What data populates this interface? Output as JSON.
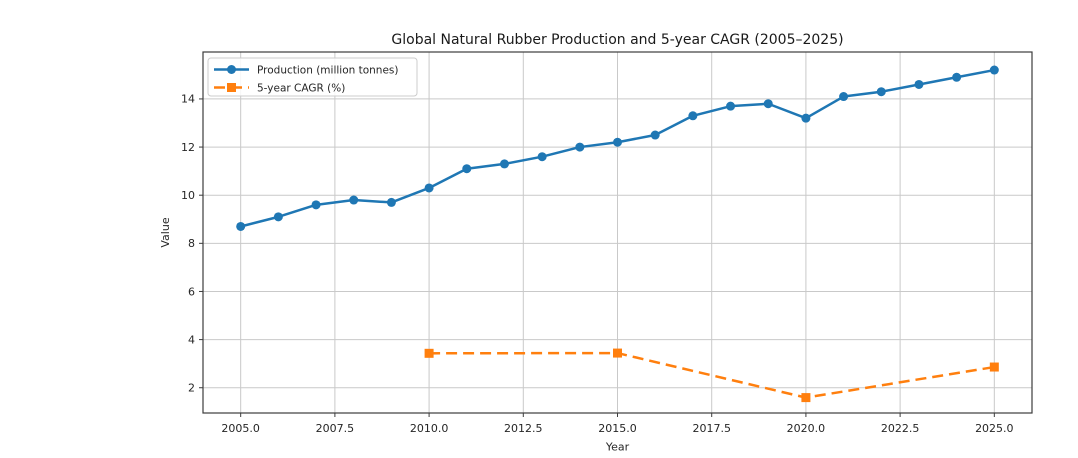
{
  "chart_data": {
    "type": "line",
    "title": "Global Natural Rubber Production and 5-year CAGR (2005–2025)",
    "xlabel": "Year",
    "ylabel": "Value",
    "xlim": [
      2004,
      2026
    ],
    "ylim": [
      0.95,
      15.95
    ],
    "grid": true,
    "legend_position": "upper left",
    "x_ticks": [
      2005,
      2007.5,
      2010,
      2012.5,
      2015,
      2017.5,
      2020,
      2022.5,
      2025
    ],
    "x_tick_labels": [
      "2005.0",
      "2007.5",
      "2010.0",
      "2012.5",
      "2015.0",
      "2017.5",
      "2020.0",
      "2022.5",
      "2025.0"
    ],
    "y_ticks": [
      2,
      4,
      6,
      8,
      10,
      12,
      14
    ],
    "y_tick_labels": [
      "2",
      "4",
      "6",
      "8",
      "10",
      "12",
      "14"
    ],
    "series": [
      {
        "name": "Production (million tonnes)",
        "color": "#1f77b4",
        "line_style": "solid",
        "marker": "circle",
        "x": [
          2005,
          2006,
          2007,
          2008,
          2009,
          2010,
          2011,
          2012,
          2013,
          2014,
          2015,
          2016,
          2017,
          2018,
          2019,
          2020,
          2021,
          2022,
          2023,
          2024,
          2025
        ],
        "y": [
          8.7,
          9.1,
          9.6,
          9.8,
          9.7,
          10.3,
          11.1,
          11.3,
          11.6,
          12.0,
          12.2,
          12.5,
          13.3,
          13.7,
          13.8,
          13.2,
          14.1,
          14.3,
          14.6,
          14.9,
          15.2
        ]
      },
      {
        "name": "5-year CAGR (%)",
        "color": "#ff7f0e",
        "line_style": "dashed",
        "marker": "square",
        "x": [
          2010,
          2015,
          2020,
          2025
        ],
        "y": [
          3.43,
          3.44,
          1.59,
          2.86
        ]
      }
    ],
    "colors": {
      "grid": "#c9c9c9",
      "spine": "#3c3c3c",
      "text": "#262626"
    }
  }
}
